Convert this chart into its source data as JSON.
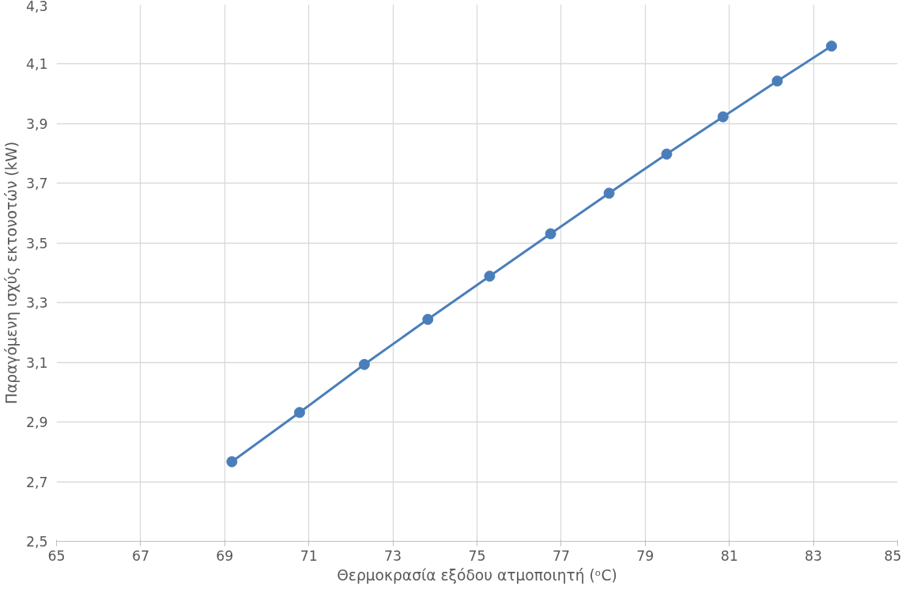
{
  "chart_data": {
    "type": "line",
    "xlabel": "Θερμοκρασία εξόδου ατμοποιητή (ᵒC)",
    "ylabel": "Παραγόμενη ισχύς εκτονοτών (kW)",
    "x": [
      69.17,
      70.78,
      72.32,
      73.83,
      75.3,
      76.75,
      78.14,
      79.51,
      80.85,
      82.14,
      83.43
    ],
    "series": [
      {
        "color": "#4a7ebb",
        "values": [
          2.767,
          2.932,
          3.093,
          3.244,
          3.389,
          3.531,
          3.667,
          3.798,
          3.923,
          4.043,
          4.16
        ]
      }
    ],
    "xlim": [
      65,
      85
    ],
    "xticks": [
      65,
      67,
      69,
      71,
      73,
      75,
      77,
      79,
      81,
      83,
      85
    ],
    "ylim": [
      2.5,
      4.3
    ],
    "yticks": [
      {
        "value": 2.5,
        "label": "2,5"
      },
      {
        "value": 2.7,
        "label": "2,7"
      },
      {
        "value": 2.9,
        "label": "2,9"
      },
      {
        "value": 3.1,
        "label": "3,1"
      },
      {
        "value": 3.3,
        "label": "3,3"
      },
      {
        "value": 3.5,
        "label": "3,5"
      },
      {
        "value": 3.7,
        "label": "3,7"
      },
      {
        "value": 3.9,
        "label": "3,9"
      },
      {
        "value": 4.1,
        "label": "4,1"
      },
      {
        "value": 4.3,
        "label": "4,3"
      }
    ],
    "grid": true,
    "marker": "circle",
    "line_style": "solid"
  }
}
